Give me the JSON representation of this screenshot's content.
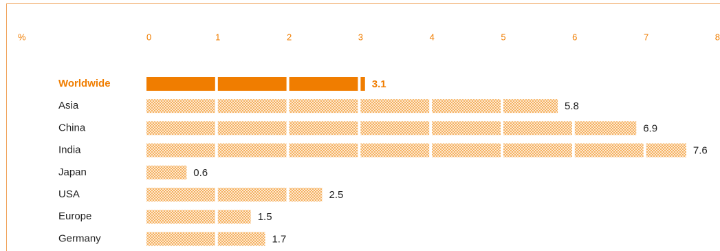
{
  "chart_data": {
    "type": "bar",
    "orientation": "horizontal",
    "unit_label": "%",
    "x_ticks": [
      0,
      1,
      2,
      3,
      4,
      5,
      6,
      7,
      8
    ],
    "xlim": [
      0,
      8
    ],
    "grid": false,
    "categories": [
      "Worldwide",
      "Asia",
      "China",
      "India",
      "Japan",
      "USA",
      "Europe",
      "Germany"
    ],
    "values": [
      3.1,
      5.8,
      6.9,
      7.6,
      0.6,
      2.5,
      1.5,
      1.7
    ],
    "value_labels": [
      "3.1",
      "5.8",
      "6.9",
      "7.6",
      "0.6",
      "2.5",
      "1.5",
      "1.7"
    ],
    "highlight_category": "Worldwide",
    "colors": {
      "accent": "#f07d00",
      "dot_fill": "#f29a2e",
      "dot_background": "#fde9d4",
      "frame": "#f0a35a",
      "text": "#222222"
    }
  }
}
